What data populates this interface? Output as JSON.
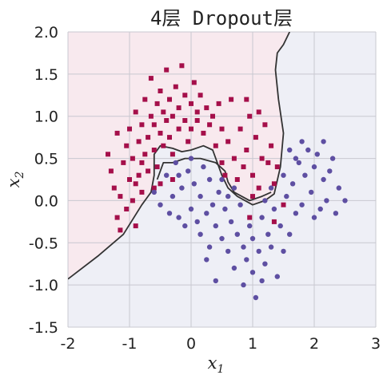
{
  "chart_data": {
    "type": "scatter",
    "title": "4层 Dropout层",
    "xlabel": "x",
    "xlabel_sub": "1",
    "ylabel": "x",
    "ylabel_sub": "2",
    "xlim": [
      -2,
      3
    ],
    "ylim": [
      -1.5,
      2.0
    ],
    "xticks": [
      -2,
      -1,
      0,
      1,
      2,
      3
    ],
    "yticks": [
      -1.5,
      -1.0,
      -0.5,
      0.0,
      0.5,
      1.0,
      1.5,
      2.0
    ],
    "xtick_labels": [
      "-2",
      "-1",
      "0",
      "1",
      "2",
      "3"
    ],
    "ytick_labels": [
      "-1.5",
      "-1.0",
      "-0.5",
      "0.0",
      "0.5",
      "1.0",
      "1.5",
      "2.0"
    ],
    "grid": true,
    "colors": {
      "class0": "#a50f4a",
      "class1": "#5e4fa2",
      "region0": "#f8e9ee",
      "region1": "#eeeff6",
      "boundary": "#333333",
      "grid": "#c8c8d0"
    },
    "series": [
      {
        "marker": "square",
        "color": "#a50f4a",
        "points": [
          [
            -1.35,
            0.55
          ],
          [
            -1.3,
            0.35
          ],
          [
            -1.25,
            0.15
          ],
          [
            -1.2,
            0.8
          ],
          [
            -1.2,
            -0.2
          ],
          [
            -1.15,
            0.05
          ],
          [
            -1.1,
            0.45
          ],
          [
            -1.05,
            -0.1
          ],
          [
            -1.05,
            0.65
          ],
          [
            -1.0,
            0.25
          ],
          [
            -1.0,
            0.85
          ],
          [
            -0.95,
            0.0
          ],
          [
            -0.95,
            0.5
          ],
          [
            -0.9,
            1.05
          ],
          [
            -0.9,
            -0.3
          ],
          [
            -0.85,
            0.7
          ],
          [
            -0.85,
            0.3
          ],
          [
            -0.8,
            0.9
          ],
          [
            -0.8,
            0.1
          ],
          [
            -0.75,
            1.2
          ],
          [
            -0.75,
            0.55
          ],
          [
            -0.7,
            0.75
          ],
          [
            -0.7,
            0.35
          ],
          [
            -0.65,
            1.0
          ],
          [
            -0.65,
            1.45
          ],
          [
            -0.6,
            0.6
          ],
          [
            -0.6,
            0.9
          ],
          [
            -0.55,
            1.15
          ],
          [
            -0.55,
            0.4
          ],
          [
            -0.5,
            0.8
          ],
          [
            -0.5,
            1.3
          ],
          [
            -0.45,
            0.65
          ],
          [
            -0.45,
            1.05
          ],
          [
            -0.4,
            0.95
          ],
          [
            -0.4,
            1.55
          ],
          [
            -0.35,
            0.75
          ],
          [
            -0.35,
            1.2
          ],
          [
            -0.3,
            1.0
          ],
          [
            -0.3,
            0.55
          ],
          [
            -0.25,
            1.35
          ],
          [
            -0.2,
            0.85
          ],
          [
            -0.2,
            1.1
          ],
          [
            -0.15,
            1.6
          ],
          [
            -0.1,
            0.95
          ],
          [
            -0.1,
            1.25
          ],
          [
            -0.05,
            0.7
          ],
          [
            0.0,
            1.15
          ],
          [
            0.0,
            0.85
          ],
          [
            0.05,
            1.4
          ],
          [
            0.1,
            0.95
          ],
          [
            0.1,
            1.05
          ],
          [
            0.15,
            1.25
          ],
          [
            0.2,
            0.8
          ],
          [
            0.25,
            1.1
          ],
          [
            0.3,
            0.9
          ],
          [
            0.35,
            1.0
          ],
          [
            0.4,
            0.65
          ],
          [
            0.45,
            1.15
          ],
          [
            0.5,
            0.45
          ],
          [
            0.5,
            0.85
          ],
          [
            0.55,
            0.3
          ],
          [
            0.6,
            0.7
          ],
          [
            0.65,
            1.2
          ],
          [
            0.7,
            0.5
          ],
          [
            0.75,
            0.25
          ],
          [
            0.8,
            0.85
          ],
          [
            0.85,
            0.4
          ],
          [
            0.9,
            0.6
          ],
          [
            0.95,
            1.0
          ],
          [
            1.0,
            0.3
          ],
          [
            1.05,
            0.75
          ],
          [
            1.1,
            0.15
          ],
          [
            1.15,
            0.5
          ],
          [
            1.2,
            0.9
          ],
          [
            1.25,
            0.45
          ],
          [
            1.3,
            0.65
          ],
          [
            1.1,
            1.05
          ],
          [
            0.9,
            1.2
          ],
          [
            1.0,
            0.05
          ],
          [
            1.35,
            0.2
          ],
          [
            1.4,
            0.4
          ],
          [
            0.95,
            -0.2
          ],
          [
            1.5,
            -0.05
          ],
          [
            1.35,
            -0.25
          ],
          [
            -1.15,
            -0.35
          ],
          [
            -0.9,
            0.2
          ],
          [
            -0.8,
            0.45
          ],
          [
            -0.6,
            0.15
          ],
          [
            -0.5,
            0.2
          ],
          [
            -0.3,
            0.25
          ]
        ]
      },
      {
        "marker": "circle",
        "color": "#5e4fa2",
        "points": [
          [
            -0.6,
            0.1
          ],
          [
            -0.5,
            -0.05
          ],
          [
            -0.4,
            0.3
          ],
          [
            -0.35,
            -0.15
          ],
          [
            -0.3,
            0.05
          ],
          [
            -0.25,
            0.45
          ],
          [
            -0.2,
            -0.2
          ],
          [
            -0.15,
            0.15
          ],
          [
            -0.1,
            -0.3
          ],
          [
            -0.05,
            0.35
          ],
          [
            0.0,
            -0.1
          ],
          [
            0.0,
            0.5
          ],
          [
            0.05,
            0.2
          ],
          [
            0.1,
            -0.25
          ],
          [
            0.15,
            0.05
          ],
          [
            0.15,
            -0.4
          ],
          [
            0.2,
            0.4
          ],
          [
            0.25,
            -0.15
          ],
          [
            0.3,
            0.25
          ],
          [
            0.3,
            -0.55
          ],
          [
            0.35,
            -0.05
          ],
          [
            0.4,
            -0.3
          ],
          [
            0.45,
            0.1
          ],
          [
            0.5,
            -0.45
          ],
          [
            0.55,
            -0.1
          ],
          [
            0.6,
            -0.6
          ],
          [
            0.65,
            -0.25
          ],
          [
            0.7,
            -0.8
          ],
          [
            0.75,
            -0.4
          ],
          [
            0.8,
            -0.05
          ],
          [
            0.85,
            -0.55
          ],
          [
            0.9,
            -0.7
          ],
          [
            0.95,
            -0.3
          ],
          [
            1.0,
            -0.85
          ],
          [
            1.0,
            -0.45
          ],
          [
            1.05,
            -1.15
          ],
          [
            1.1,
            -0.6
          ],
          [
            1.15,
            -0.2
          ],
          [
            1.2,
            -0.75
          ],
          [
            1.25,
            -0.4
          ],
          [
            1.3,
            -0.55
          ],
          [
            1.35,
            -0.1
          ],
          [
            1.4,
            -0.9
          ],
          [
            1.45,
            -0.3
          ],
          [
            1.5,
            -0.6
          ],
          [
            1.55,
            0.05
          ],
          [
            1.6,
            -0.4
          ],
          [
            1.65,
            0.2
          ],
          [
            1.7,
            -0.15
          ],
          [
            1.75,
            0.45
          ],
          [
            1.8,
            -0.05
          ],
          [
            1.85,
            0.3
          ],
          [
            1.9,
            0.6
          ],
          [
            1.95,
            0.1
          ],
          [
            2.0,
            -0.2
          ],
          [
            2.0,
            0.4
          ],
          [
            2.05,
            0.55
          ],
          [
            2.1,
            -0.1
          ],
          [
            2.15,
            0.25
          ],
          [
            2.2,
            0.0
          ],
          [
            2.25,
            0.35
          ],
          [
            2.3,
            0.5
          ],
          [
            2.35,
            -0.15
          ],
          [
            2.4,
            0.15
          ],
          [
            2.5,
            0.0
          ],
          [
            1.6,
            0.6
          ],
          [
            1.7,
            0.5
          ],
          [
            1.2,
            0.0
          ],
          [
            1.3,
            0.15
          ],
          [
            0.6,
            0.05
          ],
          [
            0.7,
            0.15
          ],
          [
            0.5,
            0.25
          ],
          [
            -0.2,
            0.3
          ],
          [
            0.25,
            -0.7
          ],
          [
            0.4,
            -0.95
          ],
          [
            0.85,
            -1.0
          ],
          [
            1.15,
            -0.95
          ],
          [
            1.5,
            0.3
          ],
          [
            1.8,
            0.7
          ],
          [
            2.15,
            0.7
          ]
        ]
      }
    ],
    "boundary_lines": [
      [
        [
          -2.0,
          -0.93
        ],
        [
          -1.5,
          -0.65
        ],
        [
          -1.1,
          -0.4
        ],
        [
          -0.8,
          -0.05
        ],
        [
          -0.65,
          0.1
        ],
        [
          -0.6,
          0.3
        ],
        [
          -0.6,
          0.55
        ],
        [
          -0.5,
          0.65
        ],
        [
          -0.3,
          0.62
        ],
        [
          -0.15,
          0.58
        ],
        [
          0.0,
          0.6
        ],
        [
          0.2,
          0.65
        ],
        [
          0.35,
          0.6
        ],
        [
          0.5,
          0.3
        ],
        [
          0.6,
          0.15
        ],
        [
          0.75,
          0.05
        ],
        [
          1.0,
          -0.05
        ],
        [
          1.2,
          0.0
        ],
        [
          1.35,
          0.08
        ],
        [
          1.45,
          0.4
        ],
        [
          1.5,
          0.8
        ],
        [
          1.42,
          1.2
        ],
        [
          1.37,
          1.55
        ],
        [
          1.4,
          1.75
        ],
        [
          1.5,
          1.85
        ],
        [
          1.6,
          2.0
        ]
      ],
      [
        [
          -0.55,
          0.25
        ],
        [
          -0.45,
          0.45
        ],
        [
          -0.3,
          0.45
        ],
        [
          -0.1,
          0.5
        ],
        [
          0.15,
          0.5
        ],
        [
          0.4,
          0.45
        ],
        [
          0.55,
          0.35
        ],
        [
          0.6,
          0.22
        ],
        [
          0.7,
          0.1
        ],
        [
          0.95,
          0.0
        ],
        [
          1.15,
          0.05
        ],
        [
          1.3,
          0.1
        ]
      ]
    ]
  }
}
